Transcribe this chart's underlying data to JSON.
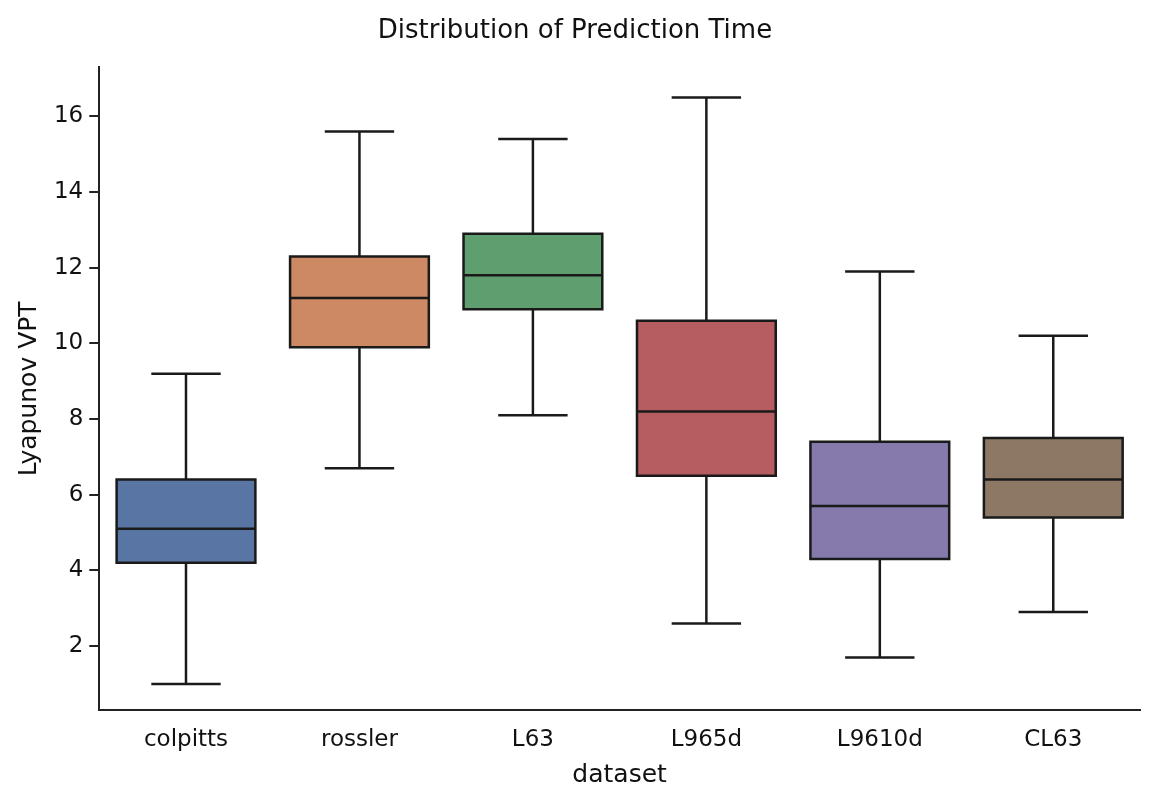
{
  "chart_data": {
    "type": "box",
    "title": "Distribution of Prediction Time",
    "xlabel": "dataset",
    "ylabel": "Lyapunov VPT",
    "categories": [
      "colpitts",
      "rossler",
      "L63",
      "L965d",
      "L9610d",
      "CL63"
    ],
    "colors": [
      "#5875a4",
      "#cc8963",
      "#5f9e6e",
      "#b55d60",
      "#857aab",
      "#8d7866"
    ],
    "boxes": [
      {
        "low": 1.0,
        "q1": 4.2,
        "median": 5.1,
        "q3": 6.4,
        "high": 9.2
      },
      {
        "low": 6.7,
        "q1": 9.9,
        "median": 11.2,
        "q3": 12.3,
        "high": 15.6
      },
      {
        "low": 8.1,
        "q1": 10.9,
        "median": 11.8,
        "q3": 12.9,
        "high": 15.4
      },
      {
        "low": 2.6,
        "q1": 6.5,
        "median": 8.2,
        "q3": 10.6,
        "high": 16.5
      },
      {
        "low": 1.7,
        "q1": 4.3,
        "median": 5.7,
        "q3": 7.4,
        "high": 11.9
      },
      {
        "low": 2.9,
        "q1": 5.4,
        "median": 6.4,
        "q3": 7.5,
        "high": 10.2
      }
    ],
    "ylim": [
      0.3,
      17.3
    ],
    "yticks": [
      2,
      4,
      6,
      8,
      10,
      12,
      14,
      16
    ],
    "grid": false,
    "legend": false
  }
}
